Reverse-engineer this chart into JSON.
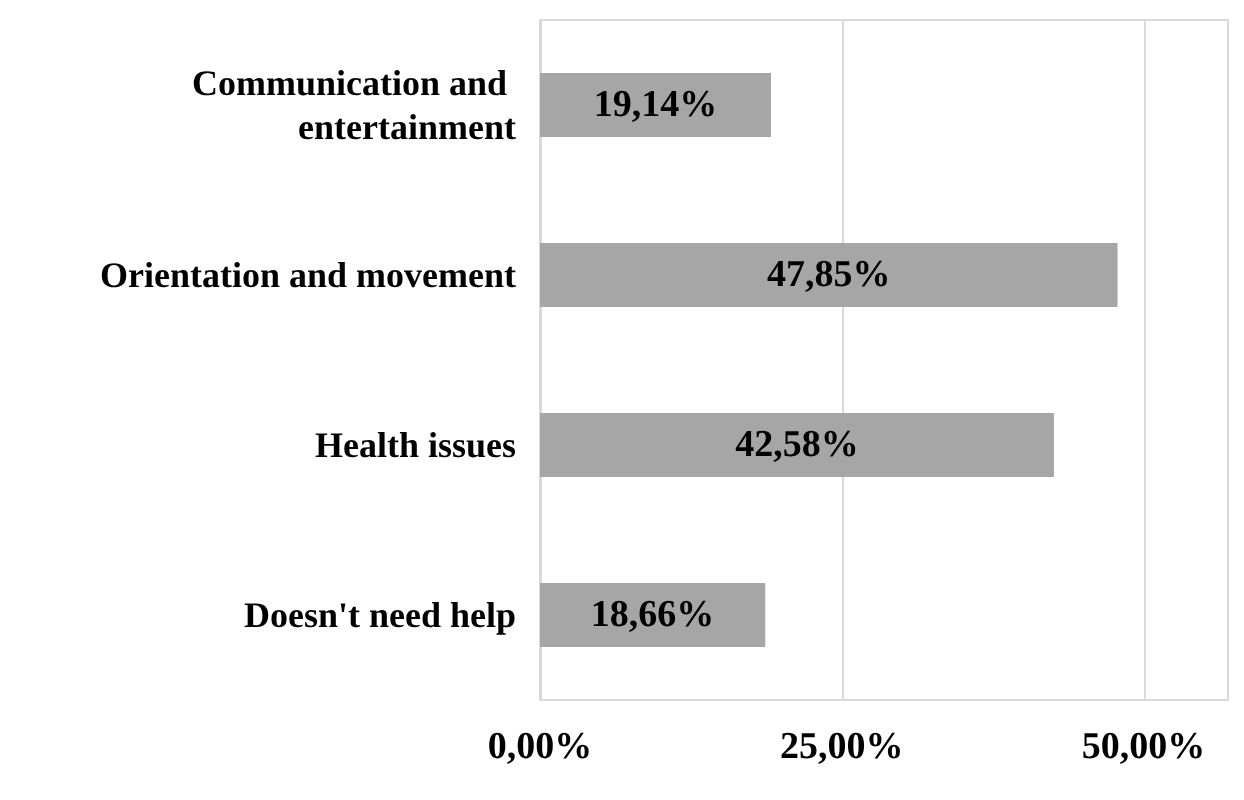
{
  "chart_data": {
    "type": "bar",
    "orientation": "horizontal",
    "categories": [
      "Communication and entertainment",
      "Orientation and movement",
      "Health issues",
      "Doesn't need help"
    ],
    "values": [
      19.14,
      47.85,
      42.58,
      18.66
    ],
    "value_labels": [
      "19,14%",
      "47,85%",
      "42,58%",
      "18,66%"
    ],
    "color": "#a6a6a6",
    "xlim": [
      0,
      57
    ],
    "xticks": [
      {
        "value": 0,
        "label": "0,00%"
      },
      {
        "value": 25,
        "label": "25,00%"
      },
      {
        "value": 50,
        "label": "50,00%"
      }
    ],
    "grid": "x"
  }
}
